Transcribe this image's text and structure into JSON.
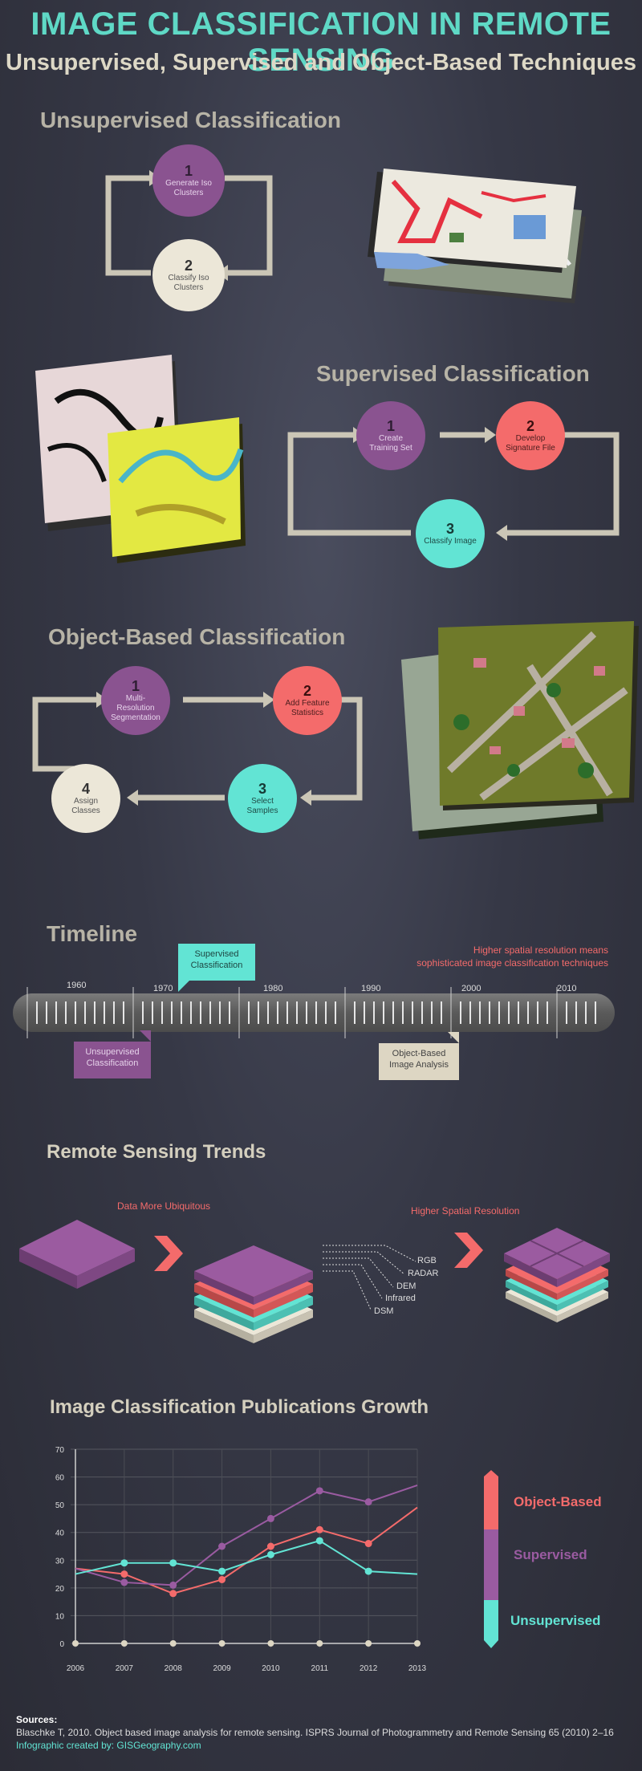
{
  "header": {
    "title": "IMAGE CLASSIFICATION IN REMOTE SENSING",
    "subtitle": "Unsupervised, Supervised and Object-Based Techniques"
  },
  "unsupervised": {
    "heading": "Unsupervised Classification",
    "steps": [
      {
        "num": "1",
        "text": "Generate Iso Clusters"
      },
      {
        "num": "2",
        "text": "Classify Iso Clusters"
      }
    ]
  },
  "supervised": {
    "heading": "Supervised Classification",
    "steps": [
      {
        "num": "1",
        "text": "Create Training Set"
      },
      {
        "num": "2",
        "text": "Develop Signature File"
      },
      {
        "num": "3",
        "text": "Classify Image"
      }
    ]
  },
  "object_based": {
    "heading": "Object-Based Classification",
    "steps": [
      {
        "num": "1",
        "text": "Multi-Resolution Segmentation"
      },
      {
        "num": "2",
        "text": "Add Feature Statistics"
      },
      {
        "num": "3",
        "text": "Select Samples"
      },
      {
        "num": "4",
        "text": "Assign Classes"
      }
    ]
  },
  "timeline": {
    "heading": "Timeline",
    "note_line1": "Higher spatial resolution means",
    "note_line2": "sophisticated image classification techniques",
    "years": [
      "1960",
      "1970",
      "1980",
      "1990",
      "2000",
      "2010"
    ],
    "events": {
      "supervised_line1": "Supervised",
      "supervised_line2": "Classification",
      "unsupervised_line1": "Unsupervised",
      "unsupervised_line2": "Classification",
      "obia_line1": "Object-Based",
      "obia_line2": "Image Analysis"
    }
  },
  "trends": {
    "heading": "Remote Sensing Trends",
    "label_ubiquitous": "Data More Ubiquitous",
    "label_resolution": "Higher Spatial Resolution",
    "layers": [
      "RGB",
      "RADAR",
      "DEM",
      "Infrared",
      "DSM"
    ]
  },
  "chart_data": {
    "type": "line",
    "title": "Image Classification Publications Growth",
    "x": [
      2006,
      2007,
      2008,
      2009,
      2010,
      2011,
      2012,
      2013
    ],
    "x_tick_labels": [
      "2006",
      "2007",
      "2008",
      "2009",
      "2010",
      "2011",
      "2012",
      "2013"
    ],
    "y_tick_labels": [
      "0",
      "10",
      "20",
      "30",
      "40",
      "50",
      "60",
      "70"
    ],
    "ylim": [
      0,
      70
    ],
    "grid": true,
    "series": [
      {
        "name": "Object-Based",
        "color": "#f46b6b",
        "values": [
          27,
          25,
          18,
          23,
          35,
          41,
          36,
          49
        ]
      },
      {
        "name": "Supervised",
        "color": "#9a5ba1",
        "values": [
          27,
          22,
          21,
          35,
          45,
          55,
          51,
          57
        ]
      },
      {
        "name": "Unsupervised",
        "color": "#62e4d4",
        "values": [
          25,
          29,
          29,
          26,
          32,
          37,
          26,
          25
        ]
      }
    ],
    "baseline_values": [
      0,
      0,
      0,
      0,
      0,
      0,
      0,
      0
    ],
    "legend_position": "right"
  },
  "sources": {
    "label": "Sources:",
    "citation": "Blaschke T, 2010.  Object based image analysis for remote sensing. ISPRS Journal of Photogrammetry and Remote Sensing 65 (2010) 2–16",
    "credit": "Infographic created by: GISGeography.com"
  },
  "colors": {
    "teal": "#62e4d4",
    "coral": "#f46b6b",
    "purple": "#8a5390",
    "cream": "#ece7d8"
  }
}
